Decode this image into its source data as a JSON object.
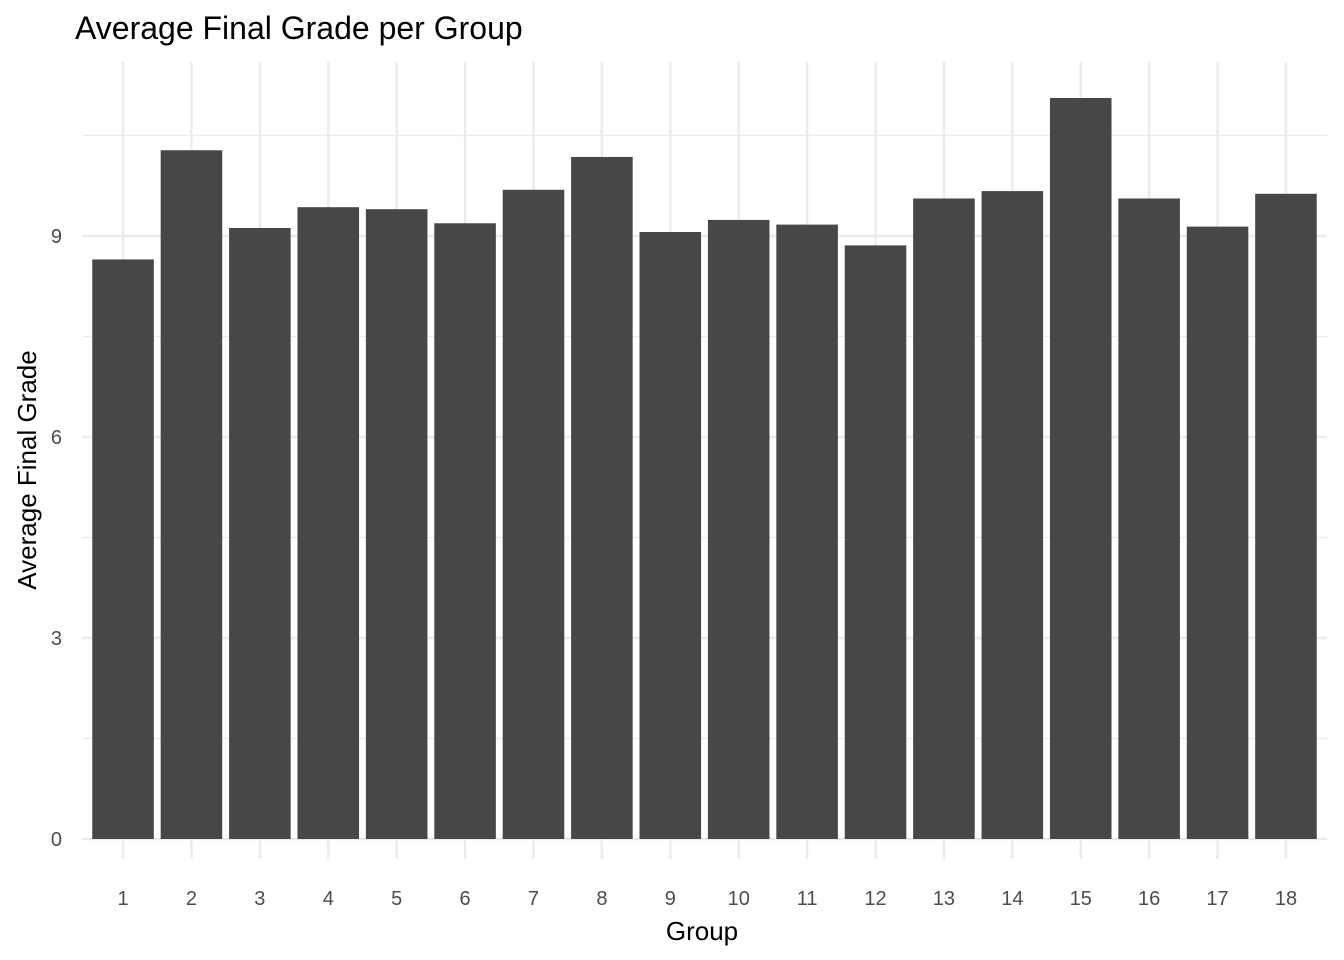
{
  "chart_data": {
    "type": "bar",
    "title": "Average Final Grade per Group",
    "xlabel": "Group",
    "ylabel": "Average Final Grade",
    "categories": [
      "1",
      "2",
      "3",
      "4",
      "5",
      "6",
      "7",
      "8",
      "9",
      "10",
      "11",
      "12",
      "13",
      "14",
      "15",
      "16",
      "17",
      "18"
    ],
    "values": [
      8.65,
      10.28,
      9.12,
      9.43,
      9.4,
      9.19,
      9.69,
      10.18,
      9.06,
      9.24,
      9.17,
      8.86,
      9.56,
      9.67,
      11.06,
      9.56,
      9.14,
      9.63
    ],
    "ylim": [
      0,
      11.6
    ],
    "y_ticks": [
      0,
      3,
      6,
      9
    ],
    "y_tick_labels": [
      "0",
      "3",
      "6",
      "9"
    ],
    "grid": true,
    "legend": "none",
    "bar_color": "#474747",
    "grid_color": "#ebebeb",
    "background": "#ffffff"
  }
}
